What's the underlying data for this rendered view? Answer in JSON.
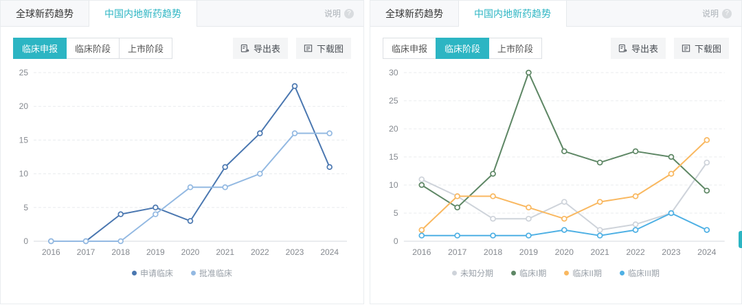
{
  "accent": "#2cb5c3",
  "icons": {
    "help_glyph": "?",
    "help": "question-circle-icon",
    "export_table": "table-export-icon",
    "download_image": "image-download-icon"
  },
  "panels": [
    {
      "tabs": [
        {
          "label": "全球新药趋势",
          "active": false
        },
        {
          "label": "中国内地新药趋势",
          "active": true
        }
      ],
      "help_label": "说明",
      "filters": [
        {
          "label": "临床申报",
          "active": true
        },
        {
          "label": "临床阶段",
          "active": false
        },
        {
          "label": "上市阶段",
          "active": false
        }
      ],
      "export_table_label": "导出表",
      "download_image_label": "下载图",
      "chart_index": 0
    },
    {
      "tabs": [
        {
          "label": "全球新药趋势",
          "active": false
        },
        {
          "label": "中国内地新药趋势",
          "active": true
        }
      ],
      "help_label": "说明",
      "filters": [
        {
          "label": "临床申报",
          "active": false
        },
        {
          "label": "临床阶段",
          "active": true
        },
        {
          "label": "上市阶段",
          "active": false
        }
      ],
      "export_table_label": "导出表",
      "download_image_label": "下载图",
      "chart_index": 1
    }
  ],
  "chart_data": [
    {
      "type": "line",
      "title": "",
      "categories": [
        "2016",
        "2017",
        "2018",
        "2019",
        "2020",
        "2021",
        "2022",
        "2023",
        "2024"
      ],
      "series": [
        {
          "name": "申请临床",
          "color": "#4a77b0",
          "values": [
            0,
            0,
            4,
            5,
            3,
            11,
            16,
            23,
            11
          ]
        },
        {
          "name": "批准临床",
          "color": "#93b9e2",
          "values": [
            0,
            0,
            0,
            4,
            8,
            8,
            10,
            16,
            16
          ]
        }
      ],
      "xlabel": "",
      "ylabel": "",
      "ylim": [
        0,
        25
      ],
      "ytick_step": 5,
      "grid": "horizontal-dashed",
      "legend_position": "bottom"
    },
    {
      "type": "line",
      "title": "",
      "categories": [
        "2016",
        "2017",
        "2018",
        "2019",
        "2020",
        "2021",
        "2022",
        "2023",
        "2024"
      ],
      "series": [
        {
          "name": "未知分期",
          "color": "#ced3da",
          "values": [
            11,
            8,
            4,
            4,
            7,
            2,
            3,
            5,
            14
          ]
        },
        {
          "name": "临床I期",
          "color": "#5e8765",
          "values": [
            10,
            6,
            12,
            30,
            16,
            14,
            16,
            15,
            9
          ]
        },
        {
          "name": "临床II期",
          "color": "#f9b860",
          "values": [
            2,
            8,
            8,
            6,
            4,
            7,
            8,
            12,
            18
          ]
        },
        {
          "name": "临床III期",
          "color": "#4eb0e4",
          "values": [
            1,
            1,
            1,
            1,
            2,
            1,
            2,
            5,
            2
          ]
        }
      ],
      "xlabel": "",
      "ylabel": "",
      "ylim": [
        0,
        30
      ],
      "ytick_step": 5,
      "grid": "horizontal-dashed",
      "legend_position": "bottom"
    }
  ]
}
